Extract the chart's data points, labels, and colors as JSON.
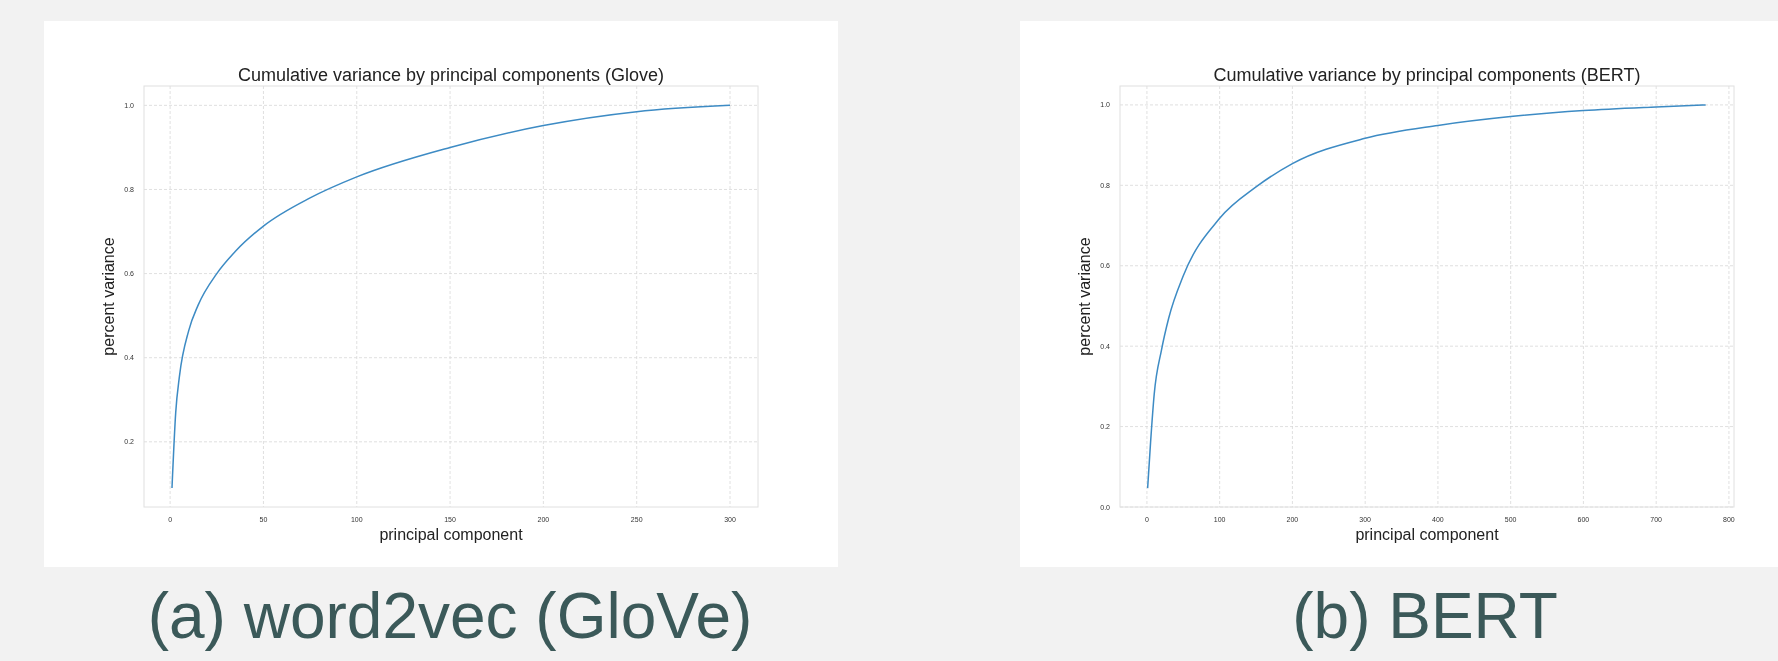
{
  "chart_data": [
    {
      "type": "line",
      "title": "Cumulative variance by principal components (Glove)",
      "xlabel": "principal component",
      "ylabel": "percent variance",
      "annotations": [
        "(a) word2vec (GloVe)"
      ],
      "grid": true,
      "xlim": [
        -14,
        315
      ],
      "ylim": [
        0.045,
        1.046
      ],
      "xticks": [
        0,
        50,
        100,
        150,
        200,
        250,
        300
      ],
      "yticks": [
        {
          "value": 0.2,
          "label": "0.2"
        },
        {
          "value": 0.4,
          "label": "0.4"
        },
        {
          "value": 0.6,
          "label": "0.6"
        },
        {
          "value": 0.8,
          "label": "0.8"
        },
        {
          "value": 1.0,
          "label": "1.0"
        }
      ],
      "series": [
        {
          "color": "#3d8bc4",
          "x": [
            1,
            3,
            5,
            10,
            15,
            25,
            35,
            50,
            75,
            100,
            150,
            200,
            250,
            300
          ],
          "values": [
            0.09,
            0.27,
            0.356,
            0.465,
            0.525,
            0.6,
            0.653,
            0.713,
            0.78,
            0.83,
            0.9,
            0.952,
            0.985,
            1.0
          ]
        }
      ]
    },
    {
      "type": "line",
      "title": "Cumulative variance by principal components (BERT)",
      "xlabel": "principal component",
      "ylabel": "percent variance",
      "annotations": [
        "(b) BERT"
      ],
      "grid": true,
      "xlim": [
        -37,
        807
      ],
      "ylim": [
        0,
        1.047
      ],
      "xticks": [
        0,
        100,
        200,
        300,
        400,
        500,
        600,
        700,
        800
      ],
      "yticks": [
        {
          "value": 0,
          "label": "0.0"
        },
        {
          "value": 0.2,
          "label": "0.2"
        },
        {
          "value": 0.4,
          "label": "0.4"
        },
        {
          "value": 0.6,
          "label": "0.6"
        },
        {
          "value": 0.8,
          "label": "0.8"
        },
        {
          "value": 1.0,
          "label": "1.0"
        }
      ],
      "series": [
        {
          "color": "#3d8bc4",
          "x": [
            1,
            5,
            10,
            20,
            30,
            50,
            100,
            150,
            200,
            300,
            400,
            500,
            600,
            700,
            768
          ],
          "values": [
            0.047,
            0.16,
            0.28,
            0.39,
            0.47,
            0.575,
            0.718,
            0.796,
            0.854,
            0.917,
            0.949,
            0.971,
            0.986,
            0.995,
            1.0
          ]
        }
      ]
    }
  ]
}
